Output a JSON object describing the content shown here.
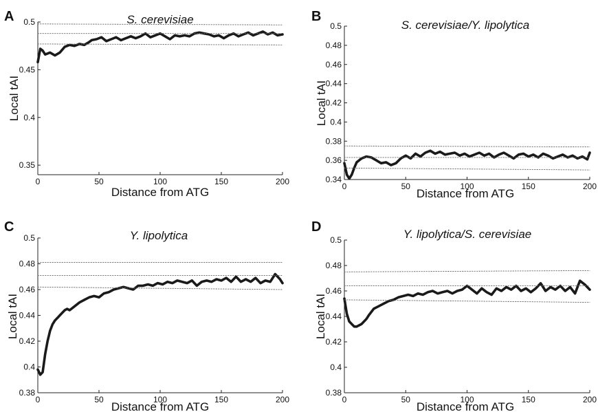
{
  "chart_data": [
    {
      "panel": "A",
      "type": "line",
      "title": "S. cerevisiae",
      "xlabel": "Distance from ATG",
      "ylabel": "Local tAI",
      "xlim": [
        0,
        200
      ],
      "ylim": [
        0.34,
        0.5
      ],
      "xticks": [
        "0",
        "50",
        "100",
        "150",
        "200"
      ],
      "yticks": [
        "0.35",
        "0.4",
        "0.45",
        "0.5"
      ],
      "grid": false,
      "series": [
        {
          "style": "solid",
          "x": [
            0,
            2,
            4,
            6,
            10,
            14,
            18,
            22,
            26,
            30,
            34,
            38,
            42,
            44,
            48,
            52,
            56,
            60,
            64,
            68,
            72,
            76,
            80,
            84,
            88,
            92,
            96,
            100,
            104,
            108,
            112,
            116,
            120,
            124,
            128,
            132,
            136,
            140,
            144,
            148,
            152,
            156,
            160,
            164,
            168,
            172,
            176,
            180,
            184,
            188,
            192,
            196,
            200
          ],
          "y": [
            0.458,
            0.472,
            0.47,
            0.466,
            0.468,
            0.465,
            0.468,
            0.474,
            0.476,
            0.475,
            0.477,
            0.476,
            0.479,
            0.481,
            0.482,
            0.484,
            0.48,
            0.482,
            0.484,
            0.481,
            0.483,
            0.485,
            0.483,
            0.485,
            0.488,
            0.484,
            0.486,
            0.488,
            0.485,
            0.482,
            0.486,
            0.485,
            0.486,
            0.485,
            0.488,
            0.489,
            0.488,
            0.487,
            0.485,
            0.486,
            0.483,
            0.486,
            0.488,
            0.485,
            0.487,
            0.489,
            0.486,
            0.488,
            0.49,
            0.487,
            0.489,
            0.486,
            0.487
          ]
        },
        {
          "style": "dotted",
          "x": [
            0,
            200
          ],
          "y": [
            0.498,
            0.497
          ]
        },
        {
          "style": "dotted",
          "x": [
            0,
            200
          ],
          "y": [
            0.488,
            0.488
          ]
        },
        {
          "style": "dotted",
          "x": [
            0,
            200
          ],
          "y": [
            0.477,
            0.476
          ]
        }
      ]
    },
    {
      "panel": "B",
      "type": "line",
      "title": "S. cerevisiae/Y. lipolytica",
      "xlabel": "Distance from ATG",
      "ylabel": "Local tAI",
      "xlim": [
        0,
        200
      ],
      "ylim": [
        0.34,
        0.5
      ],
      "xticks": [
        "0",
        "50",
        "100",
        "150",
        "200"
      ],
      "yticks": [
        "0.34",
        "0.36",
        "0.38",
        "0.4",
        "0.42",
        "0.44",
        "0.46",
        "0.48",
        "0.5"
      ],
      "grid": false,
      "series": [
        {
          "style": "solid",
          "x": [
            0,
            2,
            4,
            6,
            8,
            10,
            14,
            18,
            22,
            26,
            30,
            34,
            38,
            42,
            46,
            50,
            54,
            58,
            62,
            66,
            70,
            74,
            78,
            82,
            86,
            90,
            94,
            98,
            102,
            106,
            110,
            114,
            118,
            122,
            126,
            130,
            134,
            138,
            142,
            146,
            150,
            154,
            158,
            162,
            166,
            170,
            174,
            178,
            182,
            186,
            190,
            194,
            198,
            200
          ],
          "y": [
            0.357,
            0.345,
            0.341,
            0.345,
            0.352,
            0.358,
            0.362,
            0.364,
            0.363,
            0.36,
            0.357,
            0.358,
            0.355,
            0.357,
            0.362,
            0.365,
            0.362,
            0.367,
            0.364,
            0.368,
            0.37,
            0.367,
            0.369,
            0.366,
            0.367,
            0.368,
            0.365,
            0.367,
            0.364,
            0.366,
            0.368,
            0.365,
            0.367,
            0.363,
            0.366,
            0.368,
            0.365,
            0.362,
            0.366,
            0.367,
            0.364,
            0.366,
            0.363,
            0.367,
            0.365,
            0.362,
            0.364,
            0.366,
            0.363,
            0.365,
            0.362,
            0.364,
            0.361,
            0.368
          ]
        },
        {
          "style": "dotted",
          "x": [
            0,
            200
          ],
          "y": [
            0.375,
            0.374
          ]
        },
        {
          "style": "dotted",
          "x": [
            0,
            200
          ],
          "y": [
            0.363,
            0.363
          ]
        },
        {
          "style": "dotted",
          "x": [
            0,
            200
          ],
          "y": [
            0.352,
            0.35
          ]
        }
      ]
    },
    {
      "panel": "C",
      "type": "line",
      "title": "Y. lipolytica",
      "xlabel": "Distance from ATG",
      "ylabel": "Local tAI",
      "xlim": [
        0,
        200
      ],
      "ylim": [
        0.38,
        0.5
      ],
      "xticks": [
        "0",
        "50",
        "100",
        "150",
        "200"
      ],
      "yticks": [
        "0.38",
        "0.4",
        "0.42",
        "0.44",
        "0.46",
        "0.48",
        "0.5"
      ],
      "grid": false,
      "series": [
        {
          "style": "solid",
          "x": [
            0,
            2,
            4,
            6,
            8,
            10,
            12,
            14,
            16,
            18,
            20,
            22,
            24,
            26,
            30,
            34,
            38,
            42,
            46,
            50,
            54,
            58,
            62,
            66,
            70,
            74,
            78,
            82,
            86,
            90,
            94,
            98,
            102,
            106,
            110,
            114,
            118,
            122,
            126,
            130,
            134,
            138,
            142,
            146,
            150,
            154,
            158,
            162,
            166,
            170,
            174,
            178,
            182,
            186,
            190,
            194,
            198,
            200
          ],
          "y": [
            0.398,
            0.394,
            0.396,
            0.41,
            0.42,
            0.428,
            0.433,
            0.436,
            0.438,
            0.44,
            0.442,
            0.444,
            0.445,
            0.444,
            0.447,
            0.45,
            0.452,
            0.454,
            0.455,
            0.454,
            0.457,
            0.458,
            0.46,
            0.461,
            0.462,
            0.461,
            0.46,
            0.463,
            0.463,
            0.464,
            0.463,
            0.465,
            0.464,
            0.466,
            0.465,
            0.467,
            0.466,
            0.465,
            0.467,
            0.463,
            0.466,
            0.467,
            0.466,
            0.468,
            0.467,
            0.469,
            0.466,
            0.47,
            0.466,
            0.468,
            0.466,
            0.469,
            0.465,
            0.467,
            0.466,
            0.472,
            0.468,
            0.465
          ]
        },
        {
          "style": "dotted",
          "x": [
            0,
            200
          ],
          "y": [
            0.481,
            0.481
          ]
        },
        {
          "style": "dotted",
          "x": [
            0,
            200
          ],
          "y": [
            0.471,
            0.471
          ]
        },
        {
          "style": "dotted",
          "x": [
            0,
            200
          ],
          "y": [
            0.462,
            0.46
          ]
        }
      ]
    },
    {
      "panel": "D",
      "type": "line",
      "title": "Y. lipolytica/S. cerevisiae",
      "xlabel": "Distance from ATG",
      "ylabel": "Local tAI",
      "xlim": [
        0,
        200
      ],
      "ylim": [
        0.38,
        0.5
      ],
      "xticks": [
        "0",
        "50",
        "100",
        "150",
        "200"
      ],
      "yticks": [
        "0.38",
        "0.4",
        "0.42",
        "0.44",
        "0.46",
        "0.48",
        "0.5"
      ],
      "grid": false,
      "series": [
        {
          "style": "solid",
          "x": [
            0,
            2,
            4,
            6,
            8,
            10,
            12,
            14,
            16,
            18,
            20,
            24,
            28,
            32,
            36,
            40,
            44,
            48,
            52,
            56,
            60,
            64,
            68,
            72,
            76,
            80,
            84,
            88,
            92,
            96,
            100,
            104,
            108,
            112,
            116,
            120,
            124,
            128,
            132,
            136,
            140,
            144,
            148,
            152,
            156,
            160,
            164,
            168,
            172,
            176,
            180,
            184,
            188,
            192,
            196,
            200
          ],
          "y": [
            0.454,
            0.442,
            0.436,
            0.434,
            0.432,
            0.432,
            0.433,
            0.434,
            0.436,
            0.438,
            0.441,
            0.446,
            0.448,
            0.45,
            0.452,
            0.453,
            0.455,
            0.456,
            0.457,
            0.456,
            0.458,
            0.457,
            0.459,
            0.46,
            0.458,
            0.459,
            0.46,
            0.458,
            0.46,
            0.461,
            0.464,
            0.461,
            0.458,
            0.462,
            0.459,
            0.457,
            0.462,
            0.46,
            0.463,
            0.461,
            0.464,
            0.46,
            0.462,
            0.459,
            0.462,
            0.466,
            0.46,
            0.463,
            0.461,
            0.464,
            0.46,
            0.463,
            0.458,
            0.468,
            0.465,
            0.461
          ]
        },
        {
          "style": "dotted",
          "x": [
            0,
            200
          ],
          "y": [
            0.475,
            0.476
          ]
        },
        {
          "style": "dotted",
          "x": [
            0,
            200
          ],
          "y": [
            0.464,
            0.464
          ]
        },
        {
          "style": "dotted",
          "x": [
            0,
            200
          ],
          "y": [
            0.453,
            0.451
          ]
        }
      ]
    }
  ]
}
